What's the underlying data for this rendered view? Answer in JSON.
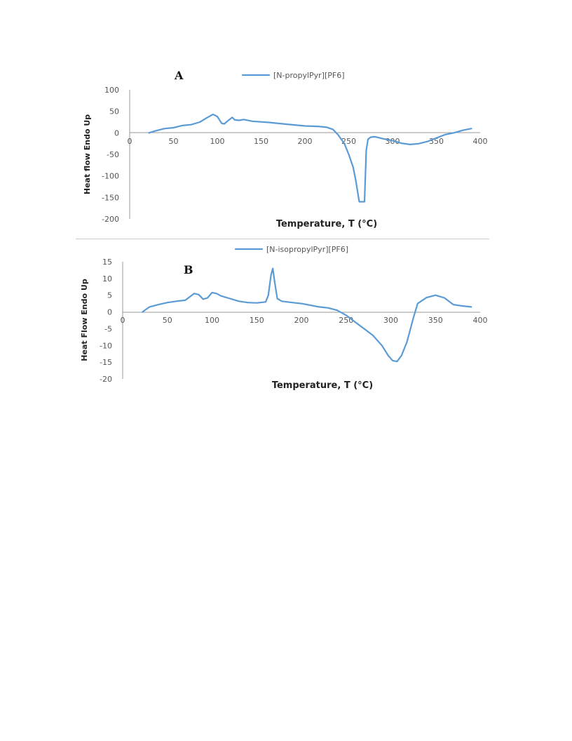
{
  "chart_data": [
    {
      "type": "line",
      "panel_label": "A",
      "xlabel": "Temperature, T (°C)",
      "ylabel": "Heat flow Endo Up",
      "xlim": [
        0,
        400
      ],
      "ylim": [
        -200,
        100
      ],
      "xticks": [
        "0",
        "50",
        "100",
        "150",
        "200",
        "250",
        "300",
        "350",
        "400"
      ],
      "yticks": [
        "100",
        "50",
        "0",
        "-50",
        "-100",
        "-150",
        "-200"
      ],
      "legend_position": "top",
      "series": [
        {
          "name": "[N-propylPyr][PF6]",
          "color": "#5b9bd5",
          "x": [
            22,
            30,
            40,
            50,
            60,
            70,
            80,
            88,
            95,
            100,
            105,
            108,
            112,
            117,
            120,
            125,
            130,
            140,
            160,
            180,
            200,
            215,
            225,
            232,
            238,
            245,
            250,
            255,
            258,
            262,
            265,
            268,
            270,
            272,
            275,
            280,
            290,
            300,
            310,
            320,
            330,
            340,
            350,
            360,
            370,
            380,
            390
          ],
          "y": [
            0,
            5,
            10,
            12,
            17,
            19,
            25,
            35,
            43,
            38,
            22,
            21,
            28,
            36,
            30,
            29,
            31,
            27,
            24,
            20,
            16,
            15,
            13,
            8,
            -5,
            -25,
            -50,
            -80,
            -110,
            -160,
            -160,
            -160,
            -40,
            -15,
            -10,
            -9,
            -14,
            -18,
            -24,
            -27,
            -25,
            -20,
            -12,
            -4,
            0,
            6,
            10
          ]
        }
      ]
    },
    {
      "type": "line",
      "panel_label": "B",
      "xlabel": "Temperature, T (°C)",
      "ylabel": "Heat Flow Endo Up",
      "xlim": [
        0,
        400
      ],
      "ylim": [
        -20,
        15
      ],
      "xticks": [
        "0",
        "50",
        "100",
        "150",
        "200",
        "250",
        "300",
        "350",
        "400"
      ],
      "yticks": [
        "15",
        "10",
        "5",
        "0",
        "-5",
        "-10",
        "-15",
        "-20"
      ],
      "legend_position": "top",
      "series": [
        {
          "name": "[N-isopropylPyr][PF6]",
          "color": "#5b9bd5",
          "x": [
            22,
            30,
            40,
            50,
            60,
            70,
            75,
            80,
            85,
            90,
            95,
            100,
            105,
            110,
            120,
            130,
            140,
            150,
            160,
            163,
            166,
            168,
            170,
            173,
            178,
            190,
            200,
            210,
            220,
            230,
            240,
            250,
            260,
            270,
            280,
            290,
            297,
            302,
            307,
            312,
            318,
            325,
            330,
            340,
            350,
            360,
            370,
            380,
            390
          ],
          "y": [
            0,
            1.5,
            2.2,
            2.8,
            3.2,
            3.5,
            4.5,
            5.5,
            5.2,
            3.8,
            4.2,
            5.8,
            5.5,
            4.8,
            4.0,
            3.2,
            2.8,
            2.7,
            3.0,
            5.0,
            11.0,
            13.0,
            9.0,
            4.0,
            3.2,
            2.8,
            2.5,
            2.0,
            1.5,
            1.2,
            0.5,
            -1.0,
            -3.0,
            -5.0,
            -7.0,
            -10.0,
            -13.0,
            -14.5,
            -14.8,
            -13.0,
            -9.0,
            -2.0,
            2.5,
            4.3,
            5.0,
            4.2,
            2.2,
            1.8,
            1.5
          ]
        }
      ]
    }
  ]
}
